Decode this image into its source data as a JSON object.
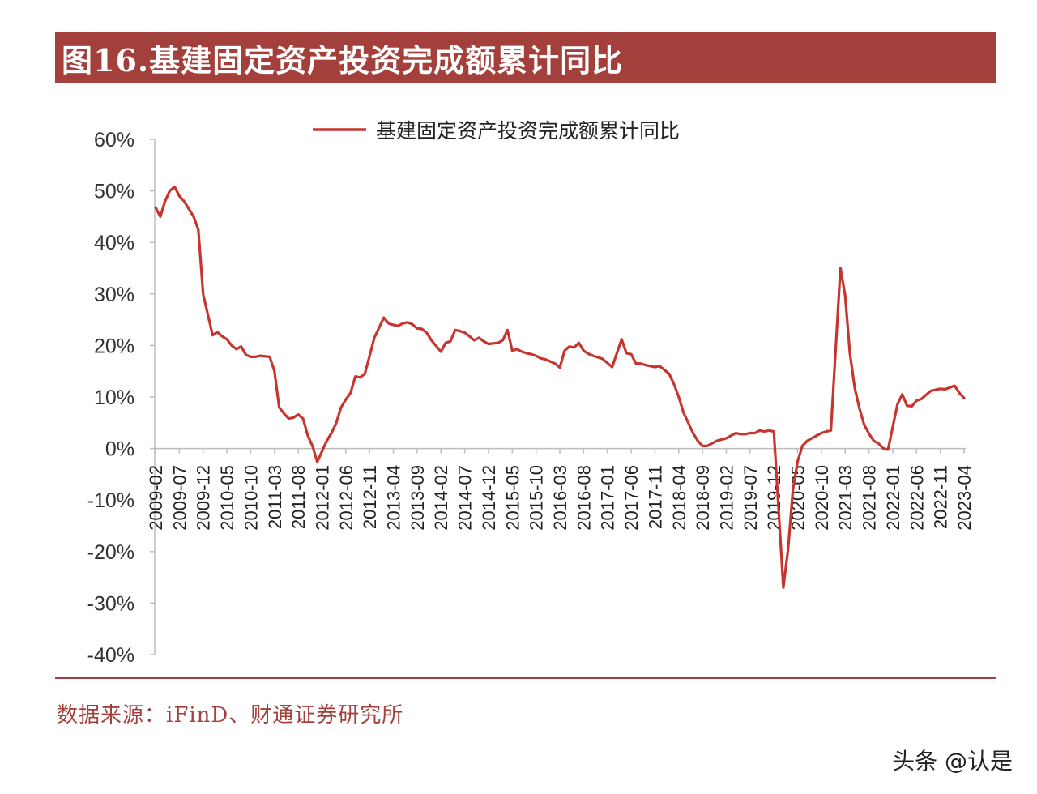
{
  "header": {
    "title": "图16.基建固定资产投资完成额累计同比"
  },
  "footer": {
    "source": "数据来源：iFinD、财通证券研究所",
    "watermark": "头条 @认是"
  },
  "chart_data": {
    "type": "line",
    "legend": "top",
    "grid": false,
    "ylim": [
      -40,
      60
    ],
    "y_ticks": [
      60,
      50,
      40,
      30,
      20,
      10,
      0,
      -10,
      -20,
      -30,
      -40
    ],
    "y_tick_labels": [
      "60%",
      "50%",
      "40%",
      "30%",
      "20%",
      "10%",
      "0%",
      "-10%",
      "-20%",
      "-30%",
      "-40%"
    ],
    "x_tick_labels": [
      "2009-02",
      "2009-07",
      "2009-12",
      "2010-05",
      "2010-10",
      "2011-03",
      "2011-08",
      "2012-01",
      "2012-06",
      "2012-11",
      "2013-04",
      "2013-09",
      "2014-02",
      "2014-07",
      "2014-12",
      "2015-05",
      "2015-10",
      "2016-03",
      "2016-08",
      "2017-01",
      "2017-06",
      "2017-11",
      "2018-04",
      "2018-09",
      "2019-02",
      "2019-07",
      "2019-12",
      "2020-05",
      "2020-10",
      "2021-03",
      "2021-08",
      "2022-01",
      "2022-06",
      "2022-11",
      "2023-04"
    ],
    "color": "#c8352f",
    "series": [
      {
        "name": "基建固定资产投资完成额累计同比",
        "values": [
          {
            "x": "2009-02",
            "y": 46.8
          },
          {
            "x": "2009-03",
            "y": 45.0
          },
          {
            "x": "2009-04",
            "y": 48.0
          },
          {
            "x": "2009-05",
            "y": 50.0
          },
          {
            "x": "2009-06",
            "y": 50.8
          },
          {
            "x": "2009-07",
            "y": 49.0
          },
          {
            "x": "2009-08",
            "y": 48.0
          },
          {
            "x": "2009-09",
            "y": 46.5
          },
          {
            "x": "2009-10",
            "y": 45.0
          },
          {
            "x": "2009-11",
            "y": 42.5
          },
          {
            "x": "2009-12",
            "y": 30.0
          },
          {
            "x": "2010-02",
            "y": 22.0
          },
          {
            "x": "2010-03",
            "y": 22.6
          },
          {
            "x": "2010-04",
            "y": 21.8
          },
          {
            "x": "2010-05",
            "y": 21.2
          },
          {
            "x": "2010-06",
            "y": 20.0
          },
          {
            "x": "2010-07",
            "y": 19.3
          },
          {
            "x": "2010-08",
            "y": 19.8
          },
          {
            "x": "2010-09",
            "y": 18.2
          },
          {
            "x": "2010-10",
            "y": 17.8
          },
          {
            "x": "2010-11",
            "y": 17.8
          },
          {
            "x": "2010-12",
            "y": 18.0
          },
          {
            "x": "2011-02",
            "y": 17.8
          },
          {
            "x": "2011-03",
            "y": 15.0
          },
          {
            "x": "2011-04",
            "y": 8.0
          },
          {
            "x": "2011-05",
            "y": 6.8
          },
          {
            "x": "2011-06",
            "y": 5.8
          },
          {
            "x": "2011-07",
            "y": 6.0
          },
          {
            "x": "2011-08",
            "y": 6.6
          },
          {
            "x": "2011-09",
            "y": 5.8
          },
          {
            "x": "2011-10",
            "y": 2.5
          },
          {
            "x": "2011-11",
            "y": 0.5
          },
          {
            "x": "2011-12",
            "y": -2.6
          },
          {
            "x": "2012-02",
            "y": 1.5
          },
          {
            "x": "2012-03",
            "y": 3.0
          },
          {
            "x": "2012-04",
            "y": 5.0
          },
          {
            "x": "2012-05",
            "y": 8.0
          },
          {
            "x": "2012-06",
            "y": 9.5
          },
          {
            "x": "2012-07",
            "y": 10.8
          },
          {
            "x": "2012-08",
            "y": 14.0
          },
          {
            "x": "2012-09",
            "y": 13.8
          },
          {
            "x": "2012-10",
            "y": 14.5
          },
          {
            "x": "2012-11",
            "y": 18.0
          },
          {
            "x": "2012-12",
            "y": 21.5
          },
          {
            "x": "2013-02",
            "y": 25.4
          },
          {
            "x": "2013-03",
            "y": 24.3
          },
          {
            "x": "2013-04",
            "y": 24.0
          },
          {
            "x": "2013-05",
            "y": 23.8
          },
          {
            "x": "2013-06",
            "y": 24.3
          },
          {
            "x": "2013-07",
            "y": 24.5
          },
          {
            "x": "2013-08",
            "y": 24.1
          },
          {
            "x": "2013-09",
            "y": 23.3
          },
          {
            "x": "2013-10",
            "y": 23.2
          },
          {
            "x": "2013-11",
            "y": 22.5
          },
          {
            "x": "2013-12",
            "y": 21.0
          },
          {
            "x": "2014-02",
            "y": 18.8
          },
          {
            "x": "2014-03",
            "y": 20.5
          },
          {
            "x": "2014-04",
            "y": 20.8
          },
          {
            "x": "2014-05",
            "y": 23.0
          },
          {
            "x": "2014-06",
            "y": 22.8
          },
          {
            "x": "2014-07",
            "y": 22.5
          },
          {
            "x": "2014-08",
            "y": 21.8
          },
          {
            "x": "2014-09",
            "y": 21.0
          },
          {
            "x": "2014-10",
            "y": 21.5
          },
          {
            "x": "2014-11",
            "y": 20.8
          },
          {
            "x": "2014-12",
            "y": 20.3
          },
          {
            "x": "2015-02",
            "y": 20.5
          },
          {
            "x": "2015-03",
            "y": 21.0
          },
          {
            "x": "2015-04",
            "y": 23.0
          },
          {
            "x": "2015-05",
            "y": 19.0
          },
          {
            "x": "2015-06",
            "y": 19.3
          },
          {
            "x": "2015-07",
            "y": 18.8
          },
          {
            "x": "2015-08",
            "y": 18.5
          },
          {
            "x": "2015-09",
            "y": 18.3
          },
          {
            "x": "2015-10",
            "y": 18.0
          },
          {
            "x": "2015-11",
            "y": 17.5
          },
          {
            "x": "2015-12",
            "y": 17.3
          },
          {
            "x": "2016-02",
            "y": 16.5
          },
          {
            "x": "2016-03",
            "y": 15.7
          },
          {
            "x": "2016-04",
            "y": 19.0
          },
          {
            "x": "2016-05",
            "y": 19.8
          },
          {
            "x": "2016-06",
            "y": 19.6
          },
          {
            "x": "2016-07",
            "y": 20.5
          },
          {
            "x": "2016-08",
            "y": 19.0
          },
          {
            "x": "2016-09",
            "y": 18.4
          },
          {
            "x": "2016-10",
            "y": 18.0
          },
          {
            "x": "2016-11",
            "y": 17.7
          },
          {
            "x": "2016-12",
            "y": 17.4
          },
          {
            "x": "2017-02",
            "y": 15.8
          },
          {
            "x": "2017-03",
            "y": 18.5
          },
          {
            "x": "2017-04",
            "y": 21.2
          },
          {
            "x": "2017-05",
            "y": 18.5
          },
          {
            "x": "2017-06",
            "y": 18.3
          },
          {
            "x": "2017-07",
            "y": 16.5
          },
          {
            "x": "2017-08",
            "y": 16.5
          },
          {
            "x": "2017-09",
            "y": 16.2
          },
          {
            "x": "2017-10",
            "y": 16.0
          },
          {
            "x": "2017-11",
            "y": 15.8
          },
          {
            "x": "2017-12",
            "y": 16.0
          },
          {
            "x": "2018-02",
            "y": 14.5
          },
          {
            "x": "2018-03",
            "y": 12.5
          },
          {
            "x": "2018-04",
            "y": 10.0
          },
          {
            "x": "2018-05",
            "y": 7.0
          },
          {
            "x": "2018-06",
            "y": 5.0
          },
          {
            "x": "2018-07",
            "y": 3.0
          },
          {
            "x": "2018-08",
            "y": 1.5
          },
          {
            "x": "2018-09",
            "y": 0.5
          },
          {
            "x": "2018-10",
            "y": 0.5
          },
          {
            "x": "2018-11",
            "y": 1.0
          },
          {
            "x": "2018-12",
            "y": 1.5
          },
          {
            "x": "2019-02",
            "y": 2.0
          },
          {
            "x": "2019-03",
            "y": 2.5
          },
          {
            "x": "2019-04",
            "y": 3.0
          },
          {
            "x": "2019-05",
            "y": 2.8
          },
          {
            "x": "2019-06",
            "y": 2.8
          },
          {
            "x": "2019-07",
            "y": 3.0
          },
          {
            "x": "2019-08",
            "y": 3.0
          },
          {
            "x": "2019-09",
            "y": 3.5
          },
          {
            "x": "2019-10",
            "y": 3.3
          },
          {
            "x": "2019-11",
            "y": 3.5
          },
          {
            "x": "2019-12",
            "y": 3.3
          },
          {
            "x": "2020-02",
            "y": -27.0
          },
          {
            "x": "2020-03",
            "y": -19.5
          },
          {
            "x": "2020-04",
            "y": -8.0
          },
          {
            "x": "2020-05",
            "y": -2.5
          },
          {
            "x": "2020-06",
            "y": 0.5
          },
          {
            "x": "2020-07",
            "y": 1.5
          },
          {
            "x": "2020-08",
            "y": 2.0
          },
          {
            "x": "2020-09",
            "y": 2.5
          },
          {
            "x": "2020-10",
            "y": 3.0
          },
          {
            "x": "2020-11",
            "y": 3.3
          },
          {
            "x": "2020-12",
            "y": 3.5
          },
          {
            "x": "2021-02",
            "y": 35.0
          },
          {
            "x": "2021-03",
            "y": 29.7
          },
          {
            "x": "2021-04",
            "y": 18.4
          },
          {
            "x": "2021-05",
            "y": 11.8
          },
          {
            "x": "2021-06",
            "y": 7.8
          },
          {
            "x": "2021-07",
            "y": 4.6
          },
          {
            "x": "2021-08",
            "y": 2.9
          },
          {
            "x": "2021-09",
            "y": 1.5
          },
          {
            "x": "2021-10",
            "y": 1.0
          },
          {
            "x": "2021-11",
            "y": 0.0
          },
          {
            "x": "2021-12",
            "y": -0.2
          },
          {
            "x": "2022-02",
            "y": 8.6
          },
          {
            "x": "2022-03",
            "y": 10.5
          },
          {
            "x": "2022-04",
            "y": 8.3
          },
          {
            "x": "2022-05",
            "y": 8.2
          },
          {
            "x": "2022-06",
            "y": 9.3
          },
          {
            "x": "2022-07",
            "y": 9.6
          },
          {
            "x": "2022-08",
            "y": 10.4
          },
          {
            "x": "2022-09",
            "y": 11.2
          },
          {
            "x": "2022-10",
            "y": 11.4
          },
          {
            "x": "2022-11",
            "y": 11.6
          },
          {
            "x": "2022-12",
            "y": 11.5
          },
          {
            "x": "2023-02",
            "y": 12.2
          },
          {
            "x": "2023-03",
            "y": 10.8
          },
          {
            "x": "2023-04",
            "y": 9.8
          }
        ]
      }
    ]
  }
}
